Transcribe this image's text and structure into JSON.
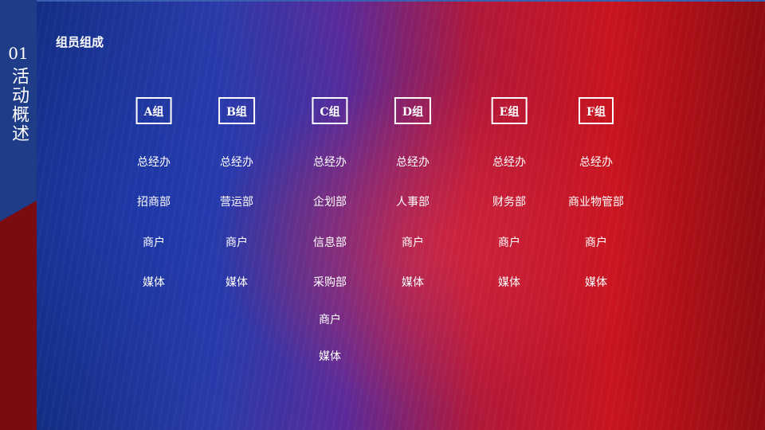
{
  "sidebar": {
    "number": "01",
    "title": "活动概述"
  },
  "section": {
    "title": "组员组成"
  },
  "groups": [
    {
      "label": "A组",
      "members": [
        "总经办",
        "招商部",
        "商户",
        "媒体"
      ]
    },
    {
      "label": "B组",
      "members": [
        "总经办",
        "营运部",
        "商户",
        "媒体"
      ]
    },
    {
      "label": "C组",
      "members": [
        "总经办",
        "企划部",
        "信息部",
        "采购部",
        "商户",
        "媒体"
      ]
    },
    {
      "label": "D组",
      "members": [
        "总经办",
        "人事部",
        "商户",
        "媒体"
      ]
    },
    {
      "label": "E组",
      "members": [
        "总经办",
        "财务部",
        "商户",
        "媒体"
      ]
    },
    {
      "label": "F组",
      "members": [
        "总经办",
        "商业物管部",
        "商户",
        "媒体"
      ]
    }
  ],
  "colors": {
    "side_blue": "#1f3c88",
    "side_red": "#7a0b0f",
    "text": "#ffffff"
  }
}
